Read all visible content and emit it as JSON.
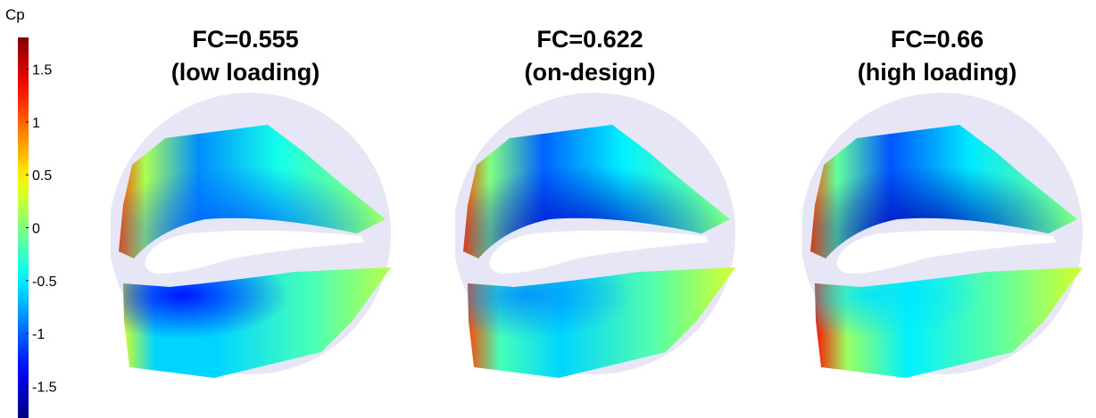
{
  "chart_data": {
    "type": "heatmap",
    "colorbar": {
      "title": "Cp",
      "range": [
        -1.8,
        1.8
      ],
      "ticks": [
        1.5,
        1,
        0.5,
        0,
        -0.5,
        -1,
        -1.5
      ],
      "tick_labels": [
        "1.5",
        "1",
        "0.5",
        "0",
        "-0.5",
        "-1",
        "-1.5"
      ],
      "colormap": "jet"
    },
    "panels": [
      {
        "title_line1": "FC=0.555",
        "title_line2": "(low loading)",
        "fc": 0.555,
        "upper": {
          "lead": 1.1,
          "lead_mid": 0.15,
          "center": -0.85,
          "center_peak": -1.05,
          "trail": 0.1
        },
        "lower": {
          "lead": 0.3,
          "lead_mid": -0.6,
          "center": -0.6,
          "center_peak": -1.35,
          "trail": 0.2
        }
      },
      {
        "title_line1": "FC=0.622",
        "title_line2": "(on-design)",
        "fc": 0.622,
        "upper": {
          "lead": 1.1,
          "lead_mid": 0.0,
          "center": -1.0,
          "center_peak": -1.55,
          "trail": 0.0
        },
        "lower": {
          "lead": 1.1,
          "lead_mid": -0.2,
          "center": -0.6,
          "center_peak": -0.85,
          "trail": 0.3
        }
      },
      {
        "title_line1": "FC=0.66",
        "title_line2": "(high loading)",
        "fc": 0.66,
        "upper": {
          "lead": 1.1,
          "lead_mid": -0.1,
          "center": -1.05,
          "center_peak": -1.65,
          "trail": 0.0
        },
        "lower": {
          "lead": 1.3,
          "lead_mid": 0.1,
          "center": -0.5,
          "center_peak": -0.55,
          "trail": 0.3
        }
      }
    ],
    "colors": {
      "disc": "#e6e6f7",
      "blade": "#ffffff"
    }
  }
}
